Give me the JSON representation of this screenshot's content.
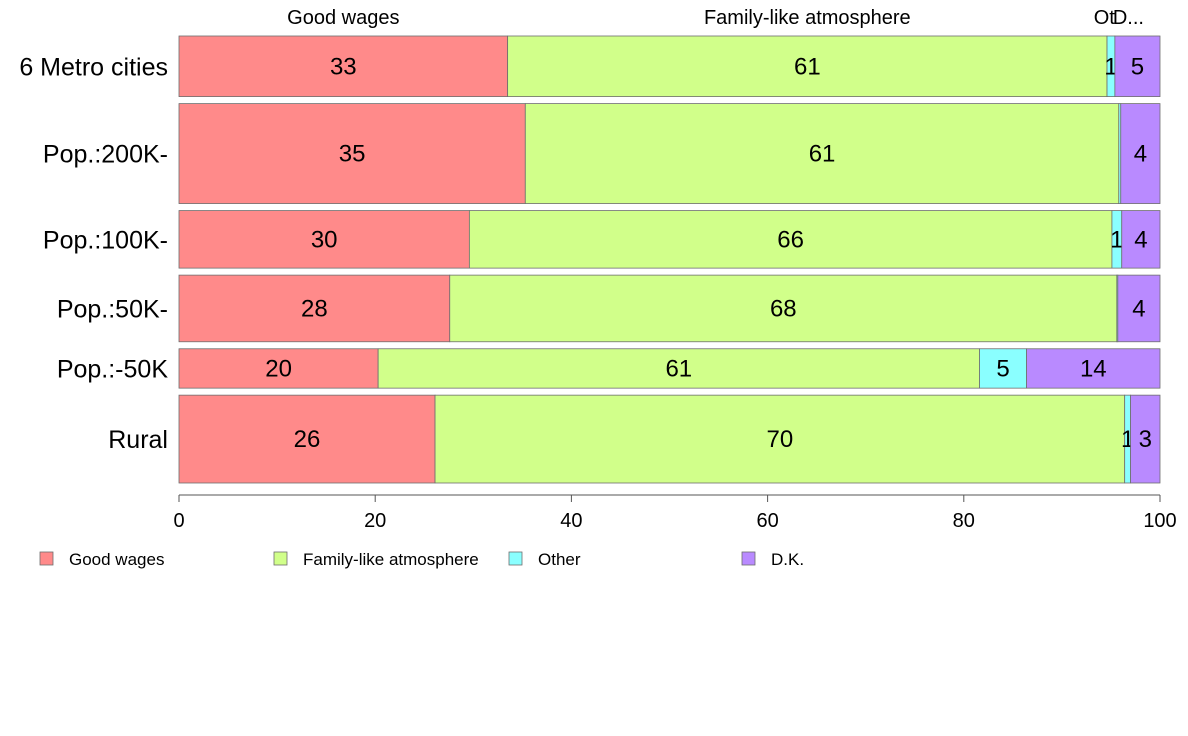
{
  "chart_data": {
    "type": "bar",
    "orientation": "horizontal",
    "stacked": true,
    "categories": [
      "6 Metro cities",
      "Pop.:200K-",
      "Pop.:100K-",
      "Pop.:50K-",
      "Pop.:-50K",
      "Rural"
    ],
    "series": [
      {
        "name": "Good wages",
        "color": "#ff8a8a",
        "values": [
          33.5,
          35.3,
          29.6,
          27.6,
          20.3,
          26.1
        ],
        "labels": [
          "33",
          "35",
          "30",
          "28",
          "20",
          "26"
        ]
      },
      {
        "name": "Family-like atmosphere",
        "color": "#d1ff8a",
        "values": [
          61.1,
          60.5,
          65.5,
          68.0,
          61.3,
          70.3
        ],
        "labels": [
          "61",
          "61",
          "66",
          "68",
          "61",
          "70"
        ]
      },
      {
        "name": "Other",
        "color": "#8affff",
        "values": [
          0.8,
          0.2,
          1.0,
          0.1,
          4.8,
          0.6
        ],
        "labels": [
          "1",
          "",
          "1",
          "",
          "5",
          "1"
        ]
      },
      {
        "name": "D.K.",
        "color": "#b98aff",
        "values": [
          4.6,
          4.0,
          3.9,
          4.3,
          13.6,
          3.0
        ],
        "labels": [
          "5",
          "4",
          "4",
          "4",
          "14",
          "3"
        ]
      }
    ],
    "row_weights": [
      2.0,
      3.3,
      1.9,
      2.2,
      1.3,
      2.9
    ],
    "top_labels": [
      "Good wages",
      "Family-like atmosphere",
      "Ot",
      "D..."
    ],
    "xlim": [
      0,
      100
    ],
    "xticks": [
      "0",
      "20",
      "40",
      "60",
      "80",
      "100"
    ],
    "legend": [
      "Good wages",
      "Family-like atmosphere",
      "Other",
      "D.K."
    ],
    "legend_position": "bottom",
    "grid": false
  }
}
